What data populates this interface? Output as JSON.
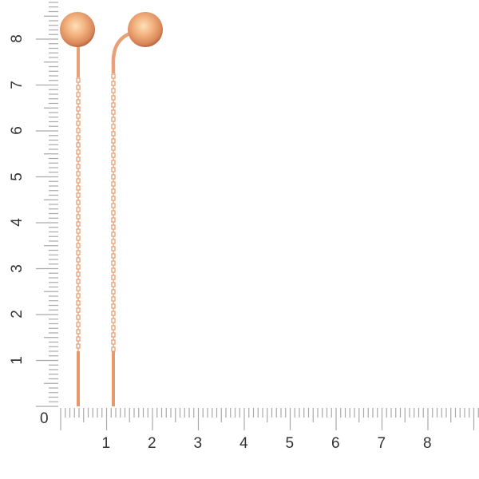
{
  "ruler": {
    "origin_label": "0",
    "x_labels": [
      "1",
      "2",
      "3",
      "4",
      "5",
      "6",
      "7",
      "8"
    ],
    "y_labels": [
      "1",
      "2",
      "3",
      "4",
      "5",
      "6",
      "7",
      "8"
    ],
    "subdivisions_per_unit": 10
  },
  "product": {
    "item": "earrings",
    "count": 2,
    "metal_color": "#e8a077"
  }
}
